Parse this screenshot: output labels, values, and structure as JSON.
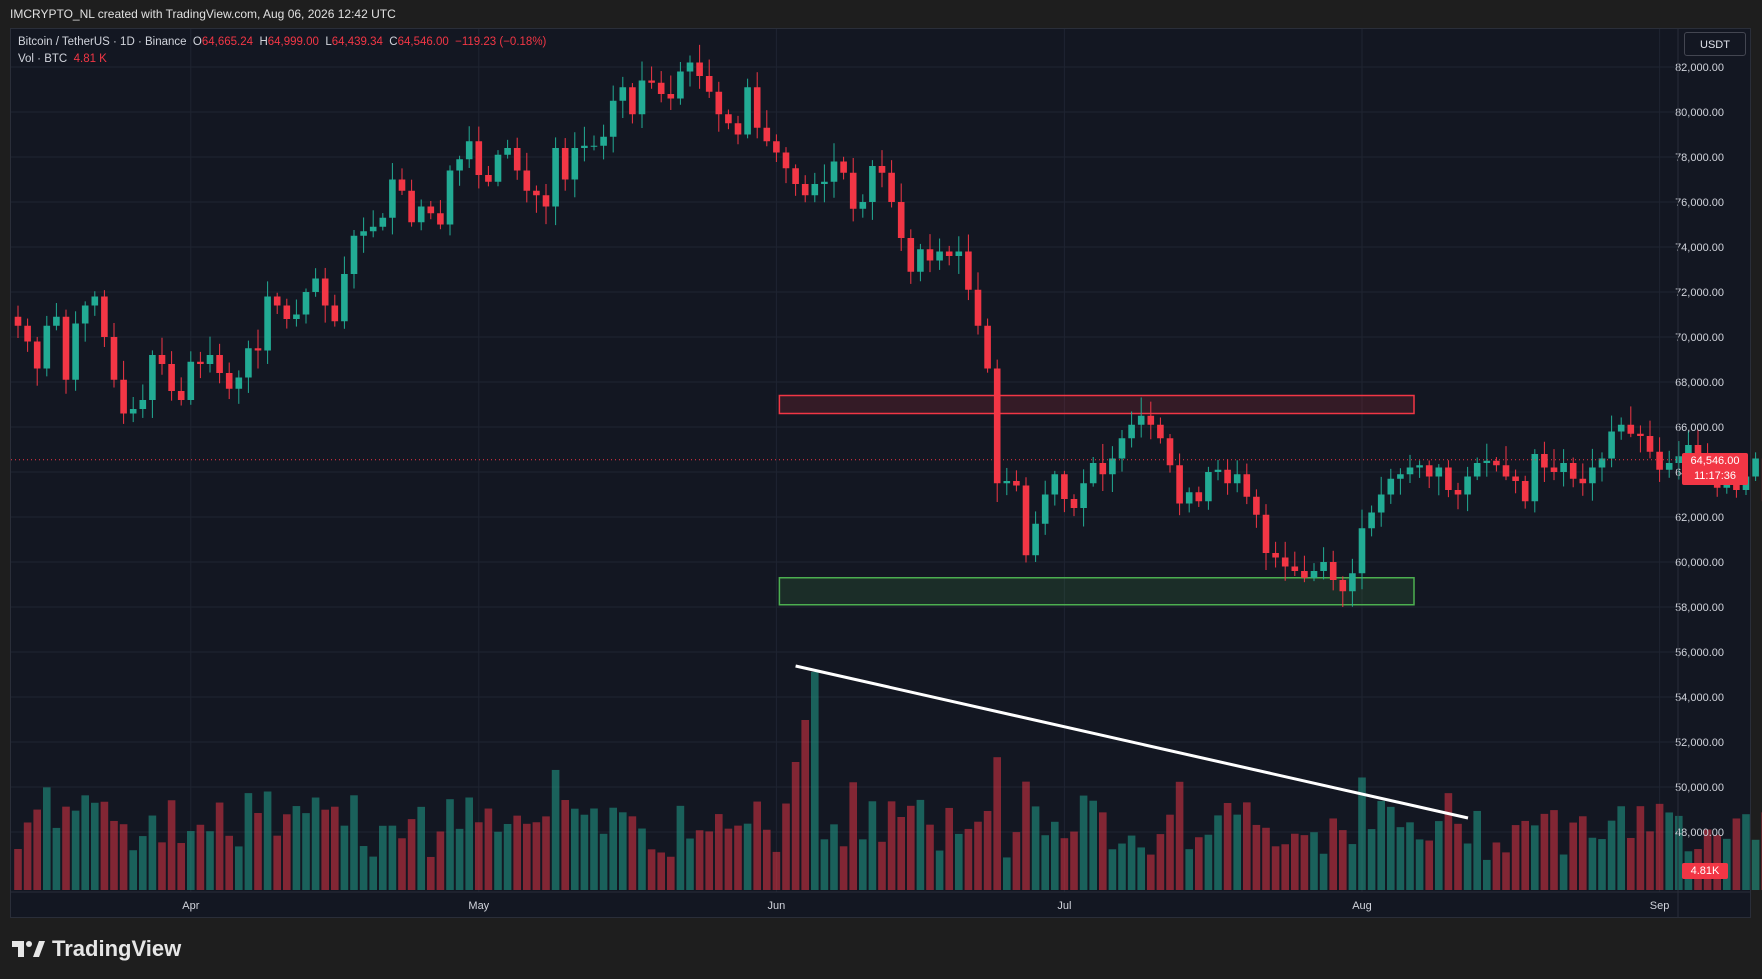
{
  "header": {
    "text": "IMCRYPTO_NL created with TradingView.com, Aug 06, 2026 12:42 UTC"
  },
  "legend": {
    "symbol": "Bitcoin / TetherUS · 1D · Binance",
    "o_label": "O",
    "o": "64,665.24",
    "h_label": "H",
    "h": "64,999.00",
    "l_label": "L",
    "l": "64,439.34",
    "c_label": "C",
    "c": "64,546.00",
    "change": "−119.23 (−0.18%)",
    "vol_label": "Vol · BTC",
    "vol": "4.81 K"
  },
  "currency_button": "USDT",
  "price_tag": {
    "price": "64,546.00",
    "countdown": "11:17:36"
  },
  "vol_tag": "4.81K",
  "brand": "TradingView",
  "colors": {
    "up": "#22ab94",
    "down": "#f23645",
    "background": "#131722",
    "grid": "#1f2431",
    "resistance": "#f23645",
    "support": "#4caf50",
    "trendline": "#ffffff"
  },
  "chart_data": {
    "type": "candlestick",
    "title": "Bitcoin / TetherUS · 1D · Binance",
    "y_axis": {
      "min": 46000,
      "max": 83000,
      "ticks": [
        82000,
        80000,
        78000,
        76000,
        74000,
        72000,
        70000,
        68000,
        66000,
        64000,
        62000,
        60000,
        58000,
        56000,
        54000,
        52000,
        50000,
        48000
      ]
    },
    "y_tick_labels": [
      "82,000.00",
      "80,000.00",
      "78,000.00",
      "76,000.00",
      "74,000.00",
      "72,000.00",
      "70,000.00",
      "68,000.00",
      "66,000.00",
      "64,000.00",
      "62,000.00",
      "60,000.00",
      "58,000.00",
      "56,000.00",
      "54,000.00",
      "52,000.00",
      "50,000.00",
      "48,000.00"
    ],
    "x_axis": {
      "labels": [
        {
          "text": "Apr",
          "date": "2026-04-01"
        },
        {
          "text": "May",
          "date": "2026-05-01"
        },
        {
          "text": "Jun",
          "date": "2026-06-01"
        },
        {
          "text": "Jul",
          "date": "2026-07-01"
        },
        {
          "text": "Aug",
          "date": "2026-08-01"
        },
        {
          "text": "Sep",
          "date": "2026-09-01"
        }
      ]
    },
    "start_date": "2026-03-14",
    "last_price": 64546,
    "closes": [
      70500,
      69800,
      68600,
      70500,
      70900,
      68100,
      70600,
      71400,
      71800,
      70000,
      68100,
      66600,
      66800,
      67200,
      69200,
      68800,
      67600,
      67200,
      68900,
      68800,
      69200,
      68400,
      67700,
      68200,
      69500,
      69400,
      71800,
      71400,
      70800,
      71000,
      72000,
      72600,
      71400,
      70700,
      72800,
      74500,
      74700,
      74900,
      75300,
      77000,
      76500,
      75100,
      75800,
      75500,
      75000,
      77400,
      77900,
      78700,
      77200,
      76900,
      78100,
      78400,
      77400,
      76500,
      76300,
      75800,
      78400,
      77000,
      78400,
      78500,
      78500,
      78900,
      80500,
      81100,
      79900,
      81400,
      81300,
      80800,
      80600,
      81800,
      82200,
      81600,
      80900,
      79900,
      79500,
      79000,
      81100,
      79300,
      78700,
      78200,
      77500,
      76800,
      76300,
      76800,
      76900,
      77800,
      77300,
      75700,
      76000,
      77600,
      77300,
      76000,
      74400,
      72900,
      73900,
      73400,
      73800,
      73600,
      73800,
      72100,
      70500,
      68600,
      63500,
      63600,
      63400,
      60300,
      61700,
      63000,
      63900,
      62800,
      62400,
      63500,
      64400,
      63900,
      64600,
      65500,
      66100,
      66500,
      66100,
      65500,
      64300,
      62600,
      63100,
      62700,
      64000,
      64100,
      63500,
      63900,
      62900,
      62100,
      60400,
      60200,
      59800,
      59600,
      59300,
      59600,
      60000,
      59200,
      58700,
      59500,
      61500,
      62200,
      63000,
      63700,
      63900,
      64200,
      64300,
      63800,
      64200,
      63200,
      63000,
      63800,
      64400,
      64500,
      64300,
      63800,
      63600,
      62700,
      64800,
      64200,
      64000,
      64400,
      63700,
      63500,
      64200,
      64600,
      65800,
      66100,
      65700,
      65600,
      64900,
      64100,
      64400,
      64700,
      65200,
      64800,
      64100,
      63300,
      64200,
      63200,
      63800,
      64600,
      62700,
      62400,
      62600,
      62800,
      63000,
      63500,
      64100,
      64500,
      64546
    ],
    "volume": {
      "series": "Vol · BTC",
      "last": 4.81
    }
  },
  "annotations": {
    "resistance_zone": {
      "low": 66600,
      "high": 67400
    },
    "support_zone": {
      "low": 58100,
      "high": 59300
    },
    "trendline": {
      "start": {
        "date": "2026-06-02",
        "volume_high": true
      },
      "end": {
        "date": "2026-08-11"
      }
    }
  }
}
